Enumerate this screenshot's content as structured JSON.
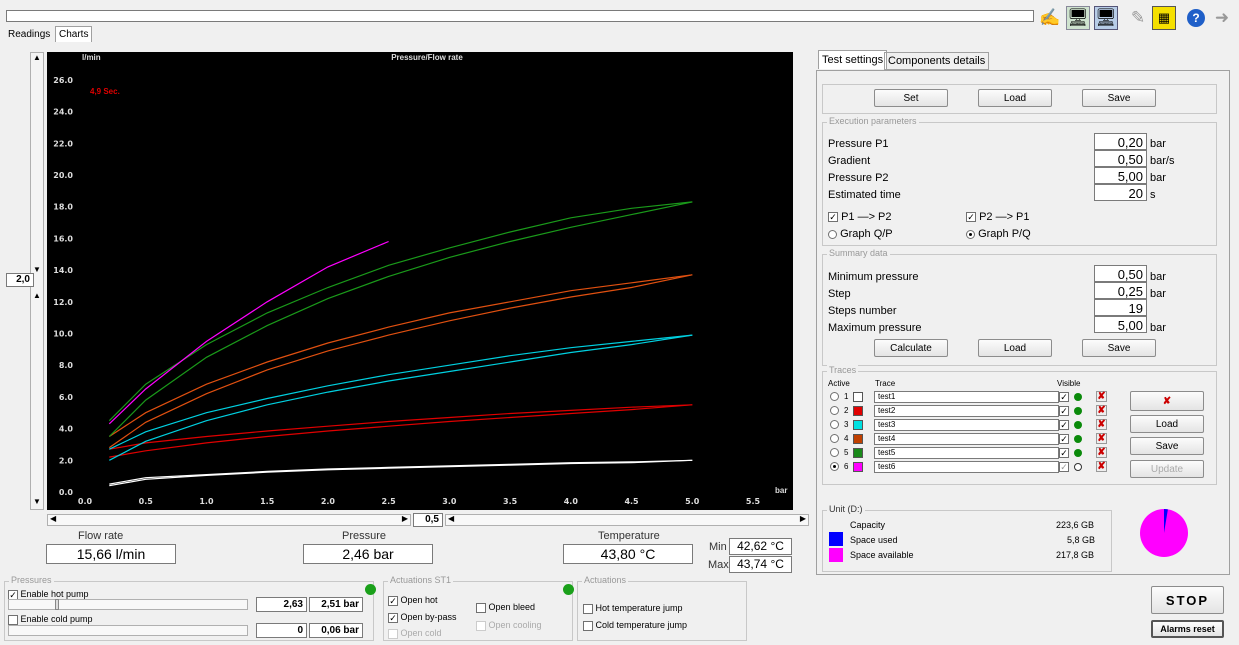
{
  "tabs": [
    "Readings",
    "Charts"
  ],
  "toolbar_icons": [
    "signature-icon",
    "network-pc-icon",
    "network-pc-selected-icon",
    "notes-icon",
    "calculator-icon",
    "help-icon",
    "exit-icon"
  ],
  "chart": {
    "title": "Pressure/Flow rate",
    "y_unit": "l/min",
    "x_unit": "bar",
    "elapsed": "4,9 Sec.",
    "zoom_value": "2,0",
    "x_scroll_value": "0,5"
  },
  "chart_data": {
    "type": "line",
    "title": "Pressure/Flow rate",
    "xlabel": "bar",
    "ylabel": "l/min",
    "xlim": [
      0,
      5.5
    ],
    "ylim": [
      0,
      27
    ],
    "xticks": [
      "0.0",
      "0.5",
      "1.0",
      "1.5",
      "2.0",
      "2.5",
      "3.0",
      "3.5",
      "4.0",
      "4.5",
      "5.0",
      "5.5"
    ],
    "yticks": [
      "0.0",
      "2.0",
      "4.0",
      "6.0",
      "8.0",
      "10.0",
      "12.0",
      "14.0",
      "16.0",
      "18.0",
      "20.0",
      "22.0",
      "24.0",
      "26.0"
    ],
    "grid": false,
    "series": [
      {
        "color": "#ffffff",
        "x": [
          0.2,
          0.5,
          1.0,
          1.5,
          2.0,
          2.5,
          3.0,
          3.5,
          4.0,
          4.5,
          5.0
        ],
        "y": [
          0.5,
          0.9,
          1.1,
          1.3,
          1.45,
          1.55,
          1.65,
          1.75,
          1.85,
          1.9,
          2.0
        ],
        "y_return": [
          0.4,
          0.8,
          1.05,
          1.25,
          1.4,
          1.5,
          1.6,
          1.7,
          1.8,
          1.85,
          2.0
        ]
      },
      {
        "color": "#e00000",
        "x": [
          0.2,
          0.5,
          1.0,
          1.5,
          2.0,
          2.5,
          3.0,
          3.5,
          4.0,
          4.5,
          5.0
        ],
        "y": [
          2.7,
          3.1,
          3.5,
          3.85,
          4.15,
          4.45,
          4.7,
          4.95,
          5.15,
          5.35,
          5.5
        ],
        "y_return": [
          2.2,
          2.6,
          3.1,
          3.5,
          3.85,
          4.15,
          4.45,
          4.7,
          4.95,
          5.2,
          5.5
        ]
      },
      {
        "color": "#00d0e0",
        "x": [
          0.2,
          0.5,
          1.0,
          1.5,
          2.0,
          2.5,
          3.0,
          3.5,
          4.0,
          4.5,
          5.0
        ],
        "y": [
          2.7,
          3.8,
          5.0,
          5.9,
          6.7,
          7.4,
          8.0,
          8.6,
          9.1,
          9.5,
          9.9
        ],
        "y_return": [
          2.0,
          3.2,
          4.5,
          5.5,
          6.3,
          7.0,
          7.6,
          8.2,
          8.8,
          9.3,
          9.9
        ]
      },
      {
        "color": "#e05010",
        "x": [
          0.2,
          0.5,
          1.0,
          1.5,
          2.0,
          2.5,
          3.0,
          3.5,
          4.0,
          4.5,
          5.0
        ],
        "y": [
          3.5,
          5.0,
          6.8,
          8.2,
          9.4,
          10.4,
          11.3,
          12.0,
          12.7,
          13.2,
          13.7
        ],
        "y_return": [
          2.8,
          4.4,
          6.2,
          7.7,
          8.9,
          9.9,
          10.8,
          11.6,
          12.3,
          12.9,
          13.7
        ]
      },
      {
        "color": "#1a9a1a",
        "x": [
          0.2,
          0.5,
          1.0,
          1.5,
          2.0,
          2.5,
          3.0,
          3.5,
          4.0,
          4.5,
          5.0
        ],
        "y": [
          4.5,
          6.8,
          9.3,
          11.3,
          12.9,
          14.3,
          15.4,
          16.4,
          17.3,
          17.9,
          18.3
        ],
        "y_return": [
          3.5,
          5.8,
          8.5,
          10.5,
          12.2,
          13.6,
          14.8,
          15.8,
          16.7,
          17.5,
          18.3
        ]
      },
      {
        "color": "#ff00ff",
        "x": [
          0.2,
          0.5,
          1.0,
          1.5,
          2.0,
          2.5
        ],
        "y": [
          4.3,
          6.5,
          9.5,
          12.0,
          14.2,
          15.8
        ]
      }
    ]
  },
  "readouts": {
    "flow_label": "Flow rate",
    "flow_value": "15,66 l/min",
    "pressure_label": "Pressure",
    "pressure_value": "2,46 bar",
    "temp_label": "Temperature",
    "temp_value": "43,80 °C",
    "min_label": "Min",
    "min_value": "42,62 °C",
    "max_label": "Max",
    "max_value": "43,74 °C"
  },
  "pressures": {
    "title": "Pressures",
    "hot_label": "Enable hot pump",
    "hot_checked": true,
    "hot_set": "2,63",
    "hot_actual": "2,51 bar",
    "cold_label": "Enable cold pump",
    "cold_checked": false,
    "cold_set": "0",
    "cold_actual": "0,06 bar"
  },
  "actuations_st1": {
    "title": "Actuations ST1",
    "open_hot": "Open hot",
    "open_bypass": "Open by-pass",
    "open_cold": "Open cold",
    "open_bleed": "Open bleed",
    "open_cooling": "Open cooling"
  },
  "actuations": {
    "title": "Actuations",
    "hot_jump": "Hot temperature jump",
    "cold_jump": "Cold temperature jump"
  },
  "right_tabs": [
    "Test settings",
    "Components details"
  ],
  "top_buttons": {
    "set": "Set",
    "load": "Load",
    "save": "Save"
  },
  "execution": {
    "title": "Execution parameters",
    "p1_label": "Pressure P1",
    "p1_value": "0,20",
    "p1_unit": "bar",
    "gradient_label": "Gradient",
    "gradient_value": "0,50",
    "gradient_unit": "bar/s",
    "p2_label": "Pressure P2",
    "p2_value": "5,00",
    "p2_unit": "bar",
    "est_label": "Estimated time",
    "est_value": "20",
    "est_unit": "s",
    "dir1": "P1 —> P2",
    "dir2": "P2 —> P1",
    "graph_qp": "Graph Q/P",
    "graph_pq": "Graph P/Q"
  },
  "summary": {
    "title": "Summary data",
    "min_label": "Minimum pressure",
    "min_value": "0,50",
    "min_unit": "bar",
    "step_label": "Step",
    "step_value": "0,25",
    "step_unit": "bar",
    "steps_label": "Steps number",
    "steps_value": "19",
    "max_label": "Maximum pressure",
    "max_value": "5,00",
    "max_unit": "bar",
    "calculate": "Calculate",
    "load": "Load",
    "save": "Save"
  },
  "traces": {
    "title": "Traces",
    "col_active": "Active",
    "col_trace": "Trace",
    "col_visible": "Visible",
    "rows": [
      {
        "num": "1",
        "name": "test1",
        "color": "#ffffff"
      },
      {
        "num": "2",
        "name": "test2",
        "color": "#e00000"
      },
      {
        "num": "3",
        "name": "test3",
        "color": "#00e0e0"
      },
      {
        "num": "4",
        "name": "test4",
        "color": "#c04000"
      },
      {
        "num": "5",
        "name": "test5",
        "color": "#1a8a1a"
      },
      {
        "num": "6",
        "name": "test6",
        "color": "#ff00ff"
      }
    ],
    "load": "Load",
    "save": "Save",
    "update": "Update"
  },
  "unit": {
    "title": "Unit (D:)",
    "capacity_label": "Capacity",
    "capacity_value": "223,6 GB",
    "used_label": "Space used",
    "used_value": "5,8 GB",
    "avail_label": "Space available",
    "avail_value": "217,8 GB",
    "used_color": "#0000ff",
    "avail_color": "#ff00ff"
  },
  "stop": "STOP",
  "alarms_reset": "Alarms reset"
}
